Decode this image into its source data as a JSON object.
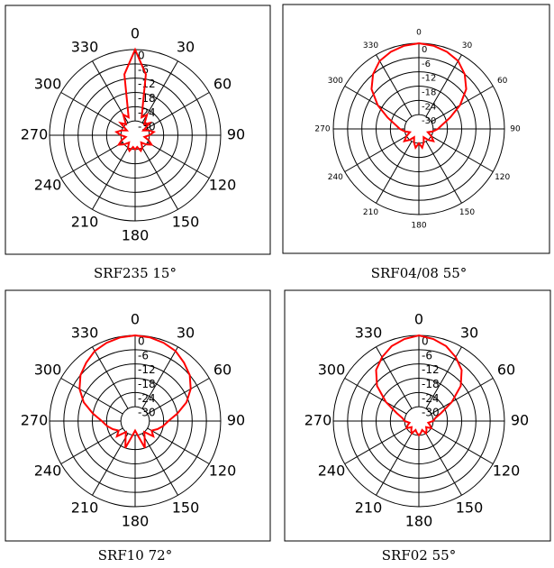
{
  "chart_data": [
    {
      "type": "polar",
      "title": "SRF235  15°",
      "theta": [
        0,
        10,
        20,
        30,
        40,
        50,
        60,
        70,
        80,
        90,
        100,
        110,
        120,
        130,
        140,
        150,
        160,
        170,
        180,
        190,
        200,
        210,
        220,
        230,
        240,
        250,
        260,
        270,
        280,
        290,
        300,
        310,
        320,
        330,
        340,
        350
      ],
      "values": [
        0,
        -10,
        -28,
        -26,
        -30,
        -28,
        -32,
        -30,
        -28,
        -30,
        -32,
        -30,
        -28,
        -30,
        -32,
        -30,
        -29,
        -31,
        -30,
        -31,
        -29,
        -30,
        -32,
        -30,
        -28,
        -30,
        -32,
        -30,
        -28,
        -30,
        -32,
        -28,
        -30,
        -26,
        -28,
        -10
      ],
      "color": "#ff0000",
      "rlim": [
        -36,
        0
      ],
      "rticks": [
        0,
        -6,
        -12,
        -18,
        -24,
        -30
      ],
      "thetaticks": [
        0,
        30,
        60,
        90,
        120,
        150,
        180,
        210,
        240,
        270,
        300,
        330
      ]
    },
    {
      "type": "polar",
      "title": "SRF04/08  55°",
      "theta": [
        0,
        10,
        20,
        30,
        40,
        50,
        60,
        70,
        80,
        90,
        100,
        110,
        120,
        130,
        140,
        150,
        160,
        170,
        180,
        190,
        200,
        210,
        220,
        230,
        240,
        250,
        260,
        270,
        280,
        290,
        300,
        310,
        320,
        330,
        340,
        350
      ],
      "values": [
        0,
        -0.5,
        -1.5,
        -3,
        -6,
        -10,
        -16,
        -22,
        -26,
        -28,
        -30,
        -32,
        -30,
        -28,
        -30,
        -32,
        -30,
        -28,
        -30,
        -28,
        -30,
        -32,
        -30,
        -28,
        -30,
        -32,
        -30,
        -28,
        -26,
        -22,
        -16,
        -10,
        -6,
        -3,
        -1.5,
        -0.5
      ],
      "color": "#ff0000",
      "rlim": [
        -36,
        0
      ],
      "rticks": [
        0,
        -6,
        -12,
        -18,
        -24,
        -30
      ],
      "thetaticks": [
        0,
        30,
        60,
        90,
        120,
        150,
        180,
        210,
        240,
        270,
        300,
        330
      ]
    },
    {
      "type": "polar",
      "title": "SRF10  72°",
      "theta": [
        0,
        10,
        20,
        30,
        40,
        50,
        60,
        70,
        80,
        90,
        100,
        110,
        120,
        130,
        140,
        150,
        160,
        170,
        180,
        190,
        200,
        210,
        220,
        230,
        240,
        250,
        260,
        270,
        280,
        290,
        300,
        310,
        320,
        330,
        340,
        350
      ],
      "values": [
        0,
        -0.3,
        -1,
        -2,
        -4,
        -6,
        -9,
        -13,
        -18,
        -22,
        -24,
        -26,
        -28,
        -26,
        -30,
        -28,
        -24,
        -30,
        -32,
        -30,
        -24,
        -28,
        -30,
        -26,
        -28,
        -26,
        -24,
        -22,
        -18,
        -13,
        -9,
        -6,
        -4,
        -2,
        -1,
        -0.3
      ],
      "color": "#ff0000",
      "rlim": [
        -36,
        0
      ],
      "rticks": [
        0,
        -6,
        -12,
        -18,
        -24,
        -30
      ],
      "thetaticks": [
        0,
        30,
        60,
        90,
        120,
        150,
        180,
        210,
        240,
        270,
        300,
        330
      ]
    },
    {
      "type": "polar",
      "title": "SRF02  55°",
      "theta": [
        0,
        10,
        20,
        30,
        40,
        50,
        60,
        70,
        80,
        90,
        100,
        110,
        120,
        130,
        140,
        150,
        160,
        170,
        180,
        190,
        200,
        210,
        220,
        230,
        240,
        250,
        260,
        270,
        280,
        290,
        300,
        310,
        320,
        330,
        340,
        350
      ],
      "values": [
        0,
        -1,
        -2.5,
        -5,
        -8,
        -13,
        -20,
        -26,
        -29,
        -30,
        -32,
        -31,
        -30,
        -32,
        -31,
        -30,
        -32,
        -31,
        -30,
        -31,
        -32,
        -30,
        -31,
        -32,
        -30,
        -31,
        -32,
        -30,
        -29,
        -26,
        -20,
        -13,
        -8,
        -5,
        -2.5,
        -1
      ],
      "color": "#ff0000",
      "rlim": [
        -36,
        0
      ],
      "rticks": [
        0,
        -6,
        -12,
        -18,
        -24,
        -30
      ],
      "thetaticks": [
        0,
        30,
        60,
        90,
        120,
        150,
        180,
        210,
        240,
        270,
        300,
        330
      ]
    }
  ]
}
